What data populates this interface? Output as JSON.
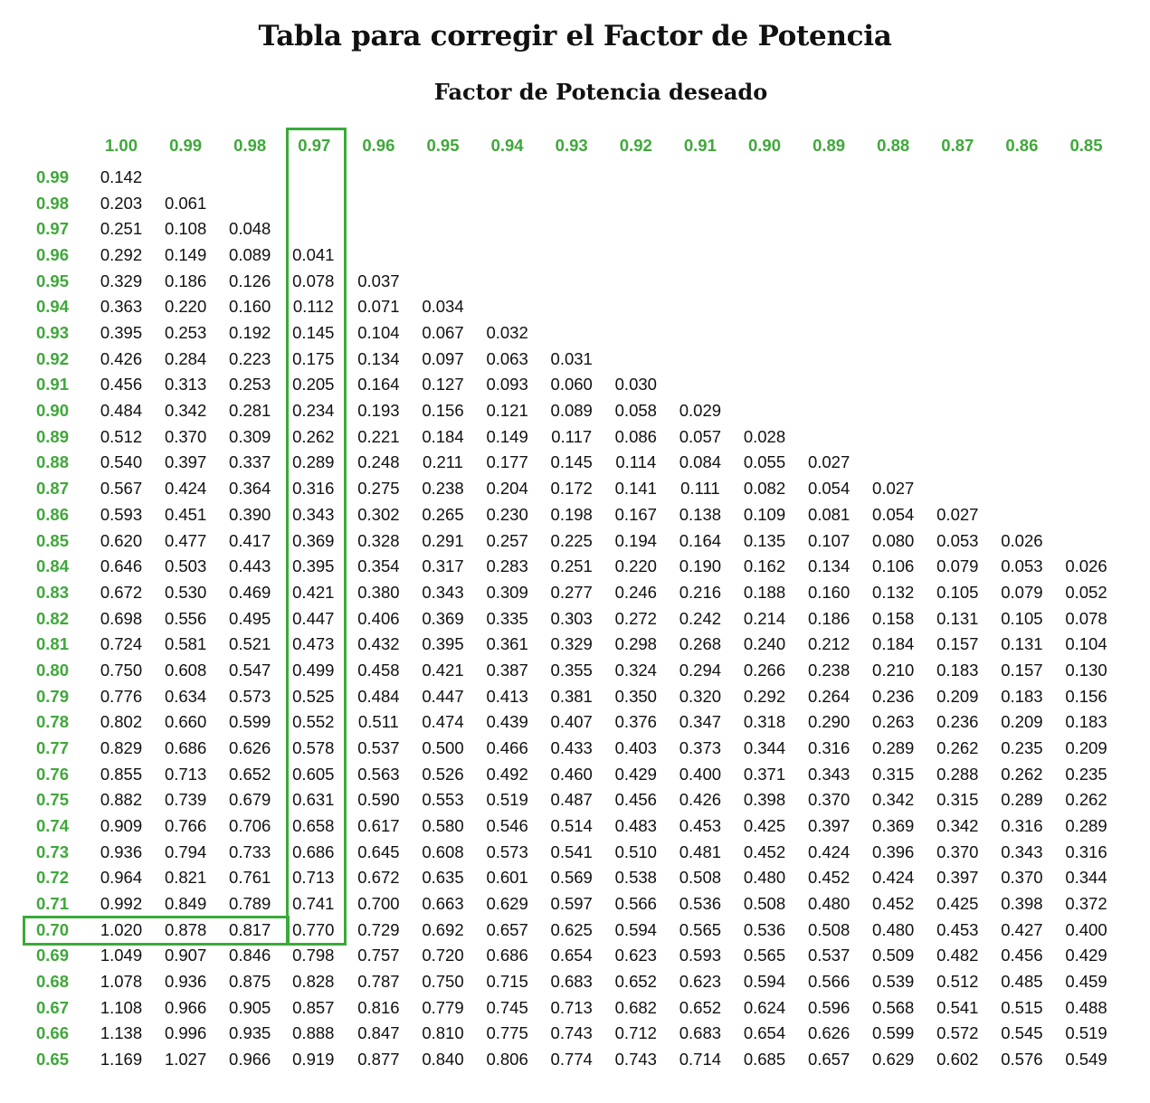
{
  "title": "Tabla para corregir el Factor de Potencia",
  "subtitle": "Factor de Potencia deseado",
  "accent_color": "#3fa83a",
  "highlight": {
    "column": "0.97",
    "row": "0.70"
  },
  "columns": [
    "1.00",
    "0.99",
    "0.98",
    "0.97",
    "0.96",
    "0.95",
    "0.94",
    "0.93",
    "0.92",
    "0.91",
    "0.90",
    "0.89",
    "0.88",
    "0.87",
    "0.86",
    "0.85"
  ],
  "rows": [
    {
      "pf": "0.99",
      "values": [
        "0.142"
      ]
    },
    {
      "pf": "0.98",
      "values": [
        "0.203",
        "0.061"
      ]
    },
    {
      "pf": "0.97",
      "values": [
        "0.251",
        "0.108",
        "0.048"
      ]
    },
    {
      "pf": "0.96",
      "values": [
        "0.292",
        "0.149",
        "0.089",
        "0.041"
      ]
    },
    {
      "pf": "0.95",
      "values": [
        "0.329",
        "0.186",
        "0.126",
        "0.078",
        "0.037"
      ]
    },
    {
      "pf": "0.94",
      "values": [
        "0.363",
        "0.220",
        "0.160",
        "0.112",
        "0.071",
        "0.034"
      ]
    },
    {
      "pf": "0.93",
      "values": [
        "0.395",
        "0.253",
        "0.192",
        "0.145",
        "0.104",
        "0.067",
        "0.032"
      ]
    },
    {
      "pf": "0.92",
      "values": [
        "0.426",
        "0.284",
        "0.223",
        "0.175",
        "0.134",
        "0.097",
        "0.063",
        "0.031"
      ]
    },
    {
      "pf": "0.91",
      "values": [
        "0.456",
        "0.313",
        "0.253",
        "0.205",
        "0.164",
        "0.127",
        "0.093",
        "0.060",
        "0.030"
      ]
    },
    {
      "pf": "0.90",
      "values": [
        "0.484",
        "0.342",
        "0.281",
        "0.234",
        "0.193",
        "0.156",
        "0.121",
        "0.089",
        "0.058",
        "0.029"
      ]
    },
    {
      "pf": "0.89",
      "values": [
        "0.512",
        "0.370",
        "0.309",
        "0.262",
        "0.221",
        "0.184",
        "0.149",
        "0.117",
        "0.086",
        "0.057",
        "0.028"
      ]
    },
    {
      "pf": "0.88",
      "values": [
        "0.540",
        "0.397",
        "0.337",
        "0.289",
        "0.248",
        "0.211",
        "0.177",
        "0.145",
        "0.114",
        "0.084",
        "0.055",
        "0.027"
      ]
    },
    {
      "pf": "0.87",
      "values": [
        "0.567",
        "0.424",
        "0.364",
        "0.316",
        "0.275",
        "0.238",
        "0.204",
        "0.172",
        "0.141",
        "0.111",
        "0.082",
        "0.054",
        "0.027"
      ]
    },
    {
      "pf": "0.86",
      "values": [
        "0.593",
        "0.451",
        "0.390",
        "0.343",
        "0.302",
        "0.265",
        "0.230",
        "0.198",
        "0.167",
        "0.138",
        "0.109",
        "0.081",
        "0.054",
        "0.027"
      ]
    },
    {
      "pf": "0.85",
      "values": [
        "0.620",
        "0.477",
        "0.417",
        "0.369",
        "0.328",
        "0.291",
        "0.257",
        "0.225",
        "0.194",
        "0.164",
        "0.135",
        "0.107",
        "0.080",
        "0.053",
        "0.026"
      ]
    },
    {
      "pf": "0.84",
      "values": [
        "0.646",
        "0.503",
        "0.443",
        "0.395",
        "0.354",
        "0.317",
        "0.283",
        "0.251",
        "0.220",
        "0.190",
        "0.162",
        "0.134",
        "0.106",
        "0.079",
        "0.053",
        "0.026"
      ]
    },
    {
      "pf": "0.83",
      "values": [
        "0.672",
        "0.530",
        "0.469",
        "0.421",
        "0.380",
        "0.343",
        "0.309",
        "0.277",
        "0.246",
        "0.216",
        "0.188",
        "0.160",
        "0.132",
        "0.105",
        "0.079",
        "0.052"
      ]
    },
    {
      "pf": "0.82",
      "values": [
        "0.698",
        "0.556",
        "0.495",
        "0.447",
        "0.406",
        "0.369",
        "0.335",
        "0.303",
        "0.272",
        "0.242",
        "0.214",
        "0.186",
        "0.158",
        "0.131",
        "0.105",
        "0.078"
      ]
    },
    {
      "pf": "0.81",
      "values": [
        "0.724",
        "0.581",
        "0.521",
        "0.473",
        "0.432",
        "0.395",
        "0.361",
        "0.329",
        "0.298",
        "0.268",
        "0.240",
        "0.212",
        "0.184",
        "0.157",
        "0.131",
        "0.104"
      ]
    },
    {
      "pf": "0.80",
      "values": [
        "0.750",
        "0.608",
        "0.547",
        "0.499",
        "0.458",
        "0.421",
        "0.387",
        "0.355",
        "0.324",
        "0.294",
        "0.266",
        "0.238",
        "0.210",
        "0.183",
        "0.157",
        "0.130"
      ]
    },
    {
      "pf": "0.79",
      "values": [
        "0.776",
        "0.634",
        "0.573",
        "0.525",
        "0.484",
        "0.447",
        "0.413",
        "0.381",
        "0.350",
        "0.320",
        "0.292",
        "0.264",
        "0.236",
        "0.209",
        "0.183",
        "0.156"
      ]
    },
    {
      "pf": "0.78",
      "values": [
        "0.802",
        "0.660",
        "0.599",
        "0.552",
        "0.511",
        "0.474",
        "0.439",
        "0.407",
        "0.376",
        "0.347",
        "0.318",
        "0.290",
        "0.263",
        "0.236",
        "0.209",
        "0.183"
      ]
    },
    {
      "pf": "0.77",
      "values": [
        "0.829",
        "0.686",
        "0.626",
        "0.578",
        "0.537",
        "0.500",
        "0.466",
        "0.433",
        "0.403",
        "0.373",
        "0.344",
        "0.316",
        "0.289",
        "0.262",
        "0.235",
        "0.209"
      ]
    },
    {
      "pf": "0.76",
      "values": [
        "0.855",
        "0.713",
        "0.652",
        "0.605",
        "0.563",
        "0.526",
        "0.492",
        "0.460",
        "0.429",
        "0.400",
        "0.371",
        "0.343",
        "0.315",
        "0.288",
        "0.262",
        "0.235"
      ]
    },
    {
      "pf": "0.75",
      "values": [
        "0.882",
        "0.739",
        "0.679",
        "0.631",
        "0.590",
        "0.553",
        "0.519",
        "0.487",
        "0.456",
        "0.426",
        "0.398",
        "0.370",
        "0.342",
        "0.315",
        "0.289",
        "0.262"
      ]
    },
    {
      "pf": "0.74",
      "values": [
        "0.909",
        "0.766",
        "0.706",
        "0.658",
        "0.617",
        "0.580",
        "0.546",
        "0.514",
        "0.483",
        "0.453",
        "0.425",
        "0.397",
        "0.369",
        "0.342",
        "0.316",
        "0.289"
      ]
    },
    {
      "pf": "0.73",
      "values": [
        "0.936",
        "0.794",
        "0.733",
        "0.686",
        "0.645",
        "0.608",
        "0.573",
        "0.541",
        "0.510",
        "0.481",
        "0.452",
        "0.424",
        "0.396",
        "0.370",
        "0.343",
        "0.316"
      ]
    },
    {
      "pf": "0.72",
      "values": [
        "0.964",
        "0.821",
        "0.761",
        "0.713",
        "0.672",
        "0.635",
        "0.601",
        "0.569",
        "0.538",
        "0.508",
        "0.480",
        "0.452",
        "0.424",
        "0.397",
        "0.370",
        "0.344"
      ]
    },
    {
      "pf": "0.71",
      "values": [
        "0.992",
        "0.849",
        "0.789",
        "0.741",
        "0.700",
        "0.663",
        "0.629",
        "0.597",
        "0.566",
        "0.536",
        "0.508",
        "0.480",
        "0.452",
        "0.425",
        "0.398",
        "0.372"
      ]
    },
    {
      "pf": "0.70",
      "values": [
        "1.020",
        "0.878",
        "0.817",
        "0.770",
        "0.729",
        "0.692",
        "0.657",
        "0.625",
        "0.594",
        "0.565",
        "0.536",
        "0.508",
        "0.480",
        "0.453",
        "0.427",
        "0.400"
      ]
    },
    {
      "pf": "0.69",
      "values": [
        "1.049",
        "0.907",
        "0.846",
        "0.798",
        "0.757",
        "0.720",
        "0.686",
        "0.654",
        "0.623",
        "0.593",
        "0.565",
        "0.537",
        "0.509",
        "0.482",
        "0.456",
        "0.429"
      ]
    },
    {
      "pf": "0.68",
      "values": [
        "1.078",
        "0.936",
        "0.875",
        "0.828",
        "0.787",
        "0.750",
        "0.715",
        "0.683",
        "0.652",
        "0.623",
        "0.594",
        "0.566",
        "0.539",
        "0.512",
        "0.485",
        "0.459"
      ]
    },
    {
      "pf": "0.67",
      "values": [
        "1.108",
        "0.966",
        "0.905",
        "0.857",
        "0.816",
        "0.779",
        "0.745",
        "0.713",
        "0.682",
        "0.652",
        "0.624",
        "0.596",
        "0.568",
        "0.541",
        "0.515",
        "0.488"
      ]
    },
    {
      "pf": "0.66",
      "values": [
        "1.138",
        "0.996",
        "0.935",
        "0.888",
        "0.847",
        "0.810",
        "0.775",
        "0.743",
        "0.712",
        "0.683",
        "0.654",
        "0.626",
        "0.599",
        "0.572",
        "0.545",
        "0.519"
      ]
    },
    {
      "pf": "0.65",
      "values": [
        "1.169",
        "1.027",
        "0.966",
        "0.919",
        "0.877",
        "0.840",
        "0.806",
        "0.774",
        "0.743",
        "0.714",
        "0.685",
        "0.657",
        "0.629",
        "0.602",
        "0.576",
        "0.549"
      ]
    }
  ]
}
